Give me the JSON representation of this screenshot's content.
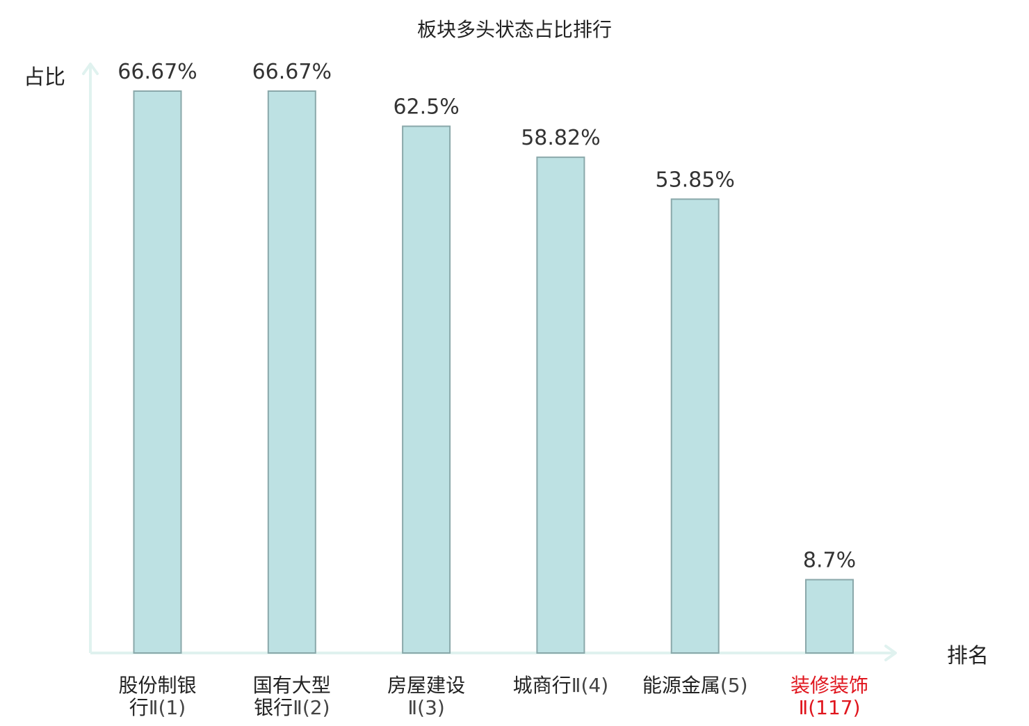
{
  "chart_data": {
    "type": "bar",
    "title": "板块多头状态占比排行",
    "ylabel": "占比",
    "xlabel": "排名",
    "categories": [
      {
        "name": "股份制银行",
        "suffix": "Ⅱ(1)",
        "line1": "股份制银",
        "line2_cn": "行",
        "highlight": false
      },
      {
        "name": "国有大型银行",
        "suffix": "Ⅱ(2)",
        "line1": "国有大型",
        "line2_cn": "银行",
        "highlight": false
      },
      {
        "name": "房屋建设",
        "suffix": "Ⅱ(3)",
        "line1": "房屋建设",
        "line2_cn": "",
        "highlight": false
      },
      {
        "name": "城商行",
        "suffix": "Ⅱ(4)",
        "line1": "城商行",
        "line2_cn": "",
        "highlight": false
      },
      {
        "name": "能源金属",
        "suffix": "(5)",
        "line1": "能源金属",
        "line2_cn": "",
        "highlight": false
      },
      {
        "name": "装修装饰",
        "suffix": "Ⅱ(117)",
        "line1": "装修装饰",
        "line2_cn": "",
        "highlight": true
      }
    ],
    "values": [
      66.67,
      66.67,
      62.5,
      58.82,
      53.85,
      8.7
    ],
    "value_labels": [
      "66.67%",
      "66.67%",
      "62.5%",
      "58.82%",
      "53.85%",
      "8.7%"
    ],
    "ylim": [
      0,
      66.67
    ],
    "grid": false,
    "legend": "none",
    "colors": {
      "bar_fill": "#bde1e3",
      "bar_stroke": "#8aa8aa",
      "axis": "#e0f2ef",
      "text": "#222222",
      "value_text": "#333333",
      "suffix_text": "#444444",
      "highlight": "#e0161e"
    }
  }
}
